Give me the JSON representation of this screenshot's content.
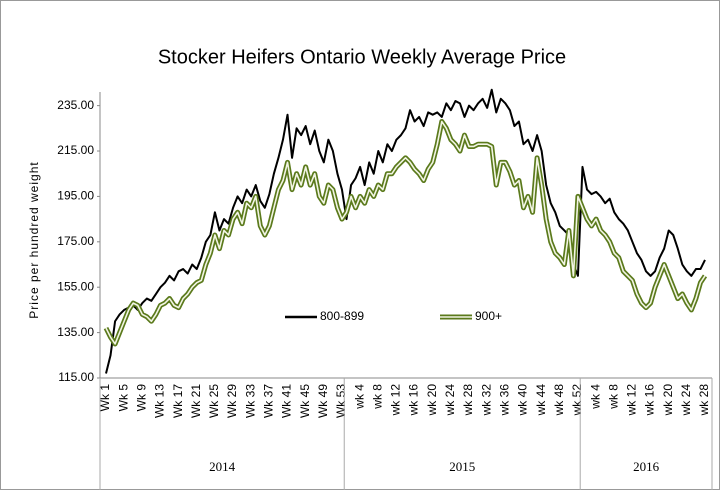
{
  "chart_data": {
    "type": "line",
    "title": "Stocker Heifers Ontario Weekly Average Price",
    "y_label": "Price per hundred weight",
    "categories": [
      "Wk 1",
      null,
      null,
      null,
      "Wk 5",
      null,
      null,
      null,
      "Wk 9",
      null,
      null,
      null,
      "Wk 13",
      null,
      null,
      null,
      "Wk 17",
      null,
      null,
      null,
      "Wk 21",
      null,
      null,
      null,
      "Wk 25",
      null,
      null,
      null,
      "Wk 29",
      null,
      null,
      null,
      "Wk 33",
      null,
      null,
      null,
      "Wk 37",
      null,
      null,
      null,
      "Wk 41",
      null,
      null,
      null,
      "Wk 45",
      null,
      null,
      null,
      "Wk 49",
      null,
      null,
      null,
      "Wk 53",
      null,
      null,
      null,
      "wk 4",
      null,
      null,
      null,
      "wk 8",
      null,
      null,
      null,
      "wk 12",
      null,
      null,
      null,
      "wk 16",
      null,
      null,
      null,
      "wk 20",
      null,
      null,
      null,
      "wk 24",
      null,
      null,
      null,
      "wk 28",
      null,
      null,
      null,
      "wk 32",
      null,
      null,
      null,
      "wk 36",
      null,
      null,
      null,
      "wk 40",
      null,
      null,
      null,
      "wk 44",
      null,
      null,
      null,
      "wk 48",
      null,
      null,
      null,
      "wk 52",
      null,
      null,
      null,
      "wk 4",
      null,
      null,
      null,
      "wk 8",
      null,
      null,
      null,
      "wk 12",
      null,
      null,
      null,
      "wk 16",
      null,
      null,
      null,
      "wk 20",
      null,
      null,
      null,
      "wk 24",
      null,
      null,
      null,
      "wk 28"
    ],
    "years": [
      {
        "label": "2014",
        "weeks": 53
      },
      {
        "label": "2015",
        "weeks": 52
      },
      {
        "label": "2016",
        "weeks": 28
      }
    ],
    "series": [
      {
        "name": "800-899",
        "color": "#000000",
        "values": [
          117,
          125,
          140,
          143,
          145,
          146,
          147,
          145,
          148,
          150,
          149,
          152,
          155,
          157,
          160,
          158,
          162,
          163,
          161,
          165,
          163,
          168,
          175,
          178,
          188,
          180,
          185,
          183,
          190,
          195,
          192,
          198,
          195,
          200,
          193,
          190,
          196,
          205,
          212,
          220,
          231,
          212,
          225,
          222,
          226,
          218,
          224,
          215,
          210,
          220,
          215,
          205,
          198,
          185,
          200,
          203,
          208,
          200,
          210,
          205,
          215,
          210,
          218,
          215,
          220,
          222,
          225,
          233,
          228,
          230,
          226,
          232,
          231,
          232,
          230,
          236,
          233,
          237,
          236,
          230,
          235,
          233,
          236,
          238,
          234,
          242,
          232,
          238,
          236,
          233,
          226,
          228,
          218,
          220,
          215,
          222,
          215,
          200,
          192,
          188,
          182,
          180,
          178,
          165,
          160,
          208,
          198,
          196,
          197,
          195,
          192,
          194,
          188,
          185,
          183,
          180,
          175,
          170,
          167,
          162,
          160,
          162,
          168,
          172,
          180,
          178,
          172,
          165,
          162,
          160,
          163,
          163,
          167
        ]
      },
      {
        "name": "900+",
        "color": "#5b7a1c",
        "values": [
          137,
          133,
          130,
          135,
          140,
          145,
          148,
          147,
          143,
          142,
          140,
          143,
          147,
          148,
          150,
          147,
          146,
          150,
          152,
          155,
          157,
          158,
          165,
          170,
          178,
          172,
          180,
          178,
          185,
          188,
          183,
          192,
          190,
          195,
          182,
          178,
          182,
          190,
          198,
          202,
          210,
          198,
          205,
          200,
          208,
          200,
          205,
          195,
          192,
          200,
          198,
          190,
          185,
          188,
          195,
          190,
          195,
          192,
          198,
          195,
          200,
          198,
          205,
          205,
          208,
          210,
          212,
          210,
          207,
          205,
          202,
          207,
          210,
          218,
          228,
          225,
          220,
          218,
          215,
          222,
          217,
          217,
          218,
          218,
          218,
          217,
          200,
          210,
          210,
          206,
          200,
          202,
          190,
          195,
          188,
          212,
          200,
          185,
          175,
          170,
          168,
          165,
          180,
          160,
          195,
          190,
          185,
          182,
          185,
          180,
          178,
          175,
          170,
          168,
          162,
          160,
          158,
          152,
          148,
          146,
          148,
          155,
          160,
          165,
          160,
          155,
          150,
          152,
          148,
          145,
          150,
          157,
          160
        ]
      }
    ],
    "ylim": [
      115,
      241
    ],
    "yticks": [
      {
        "value": 115,
        "label": "115.00"
      },
      {
        "value": 135,
        "label": "135.00"
      },
      {
        "value": 155,
        "label": "155.00"
      },
      {
        "value": 175,
        "label": "175.00"
      },
      {
        "value": 195,
        "label": "195.00"
      },
      {
        "value": 215,
        "label": "215.00"
      },
      {
        "value": 235,
        "label": "235.00"
      }
    ],
    "grid": false,
    "legend": "center"
  }
}
